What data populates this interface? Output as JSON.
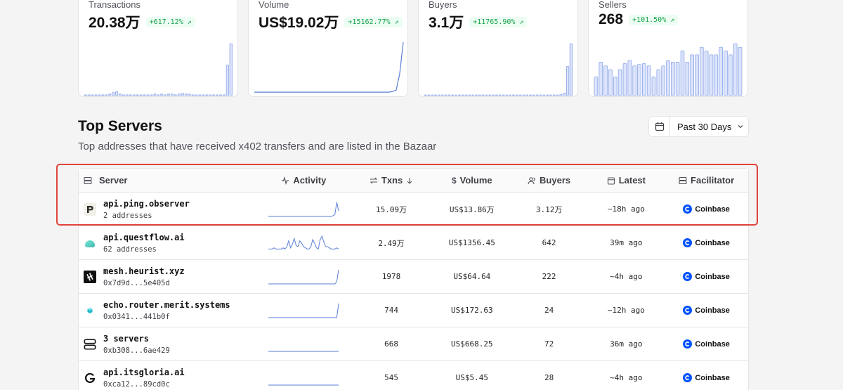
{
  "stats": [
    {
      "label": "Transactions",
      "value": "20.38万",
      "change": "+617.12% ↗",
      "chart": "bar",
      "series": [
        1,
        1,
        1,
        1,
        1,
        1,
        1,
        2,
        4,
        5,
        2,
        1,
        1,
        1,
        1,
        1,
        1,
        1,
        1,
        1,
        2,
        1,
        2,
        1,
        2,
        2,
        1,
        2,
        3,
        2,
        2,
        1,
        1,
        1,
        1,
        1,
        1,
        1,
        1,
        1,
        1,
        40,
        68
      ]
    },
    {
      "label": "Volume",
      "value": "US$19.02万",
      "change": "+15162.77% ↗",
      "chart": "line",
      "series": [
        1,
        1,
        1,
        1,
        1,
        1,
        1,
        1,
        1,
        1,
        1,
        1,
        1,
        1,
        1,
        1,
        1,
        1,
        1,
        1,
        1,
        1,
        1,
        1,
        1,
        1,
        1,
        1,
        1,
        1,
        1,
        1,
        1,
        1,
        1,
        1,
        1,
        1,
        1,
        2,
        4,
        30,
        80
      ]
    },
    {
      "label": "Buyers",
      "value": "3.1万",
      "change": "+11765.90% ↗",
      "chart": "bar",
      "series": [
        0,
        0,
        0,
        0,
        0,
        0,
        0,
        0,
        0,
        0,
        0,
        0,
        0,
        0,
        0,
        0,
        0,
        0,
        0,
        0,
        0,
        0,
        0,
        0,
        0,
        0,
        0,
        0,
        0,
        0,
        0,
        0,
        0,
        0,
        0,
        0,
        0,
        0,
        0,
        0,
        2,
        4,
        45,
        80
      ]
    },
    {
      "label": "Sellers",
      "value": "268",
      "change": "+101.50% ↗",
      "chart": "bar",
      "series": [
        25,
        45,
        40,
        35,
        25,
        35,
        43,
        47,
        40,
        42,
        43,
        40,
        25,
        35,
        40,
        47,
        45,
        45,
        60,
        45,
        55,
        55,
        65,
        60,
        55,
        55,
        65,
        60,
        55,
        70,
        65
      ]
    }
  ],
  "section": {
    "title": "Top Servers",
    "subtitle": "Top addresses that have received x402 transfers and are listed in the Bazaar",
    "date_range": "Past 30 Days"
  },
  "table": {
    "headers": {
      "server": "Server",
      "activity": "Activity",
      "txns": "Txns",
      "volume": "Volume",
      "buyers": "Buyers",
      "latest": "Latest",
      "facilitator": "Facilitator"
    },
    "rows": [
      {
        "name": "api.ping.observer",
        "sub": "2 addresses",
        "logo": "ping-logo",
        "txns": "15.09万",
        "volume": "US$13.86万",
        "buyers": "3.12万",
        "latest": "~18h ago",
        "facilitator": "Coinbase",
        "activity": [
          0,
          0,
          0,
          0,
          0,
          0,
          0,
          0,
          0,
          0,
          0,
          0,
          0,
          0,
          0,
          0,
          0,
          0,
          0,
          0,
          0,
          0,
          0,
          0,
          0,
          0,
          0,
          0,
          0,
          0,
          0,
          0,
          0,
          0,
          0,
          1,
          3,
          20,
          8
        ]
      },
      {
        "name": "api.questflow.ai",
        "sub": "62 addresses",
        "logo": "questflow-logo",
        "txns": "2.49万",
        "volume": "US$1356.45",
        "buyers": "642",
        "latest": "39m ago",
        "facilitator": "Coinbase",
        "activity": [
          1,
          1,
          1,
          2,
          1,
          1,
          1,
          1,
          2,
          1,
          3,
          8,
          2,
          5,
          10,
          4,
          3,
          8,
          6,
          3,
          2,
          1,
          1,
          3,
          9,
          6,
          2,
          1,
          9,
          12,
          7,
          3,
          3,
          2,
          1,
          1,
          1,
          2,
          1
        ]
      },
      {
        "name": "mesh.heurist.xyz",
        "sub": "0x7d9d...5e405d",
        "logo": "heurist-logo",
        "txns": "1978",
        "volume": "US$64.64",
        "buyers": "222",
        "latest": "~4h ago",
        "facilitator": "Coinbase",
        "activity": [
          0,
          0,
          0,
          0,
          0,
          0,
          0,
          0,
          0,
          0,
          0,
          0,
          0,
          0,
          0,
          0,
          0,
          0,
          0,
          0,
          0,
          0,
          0,
          0,
          0,
          0,
          0,
          0,
          0,
          0,
          0,
          0,
          0,
          0,
          0,
          0,
          0,
          1,
          6
        ]
      },
      {
        "name": "echo.router.merit.systems",
        "sub": "0x0341...441b0f",
        "logo": "merit-logo",
        "txns": "744",
        "volume": "US$172.63",
        "buyers": "24",
        "latest": "~12h ago",
        "facilitator": "Coinbase",
        "activity": [
          0,
          0,
          0,
          0,
          0,
          0,
          0,
          0,
          0,
          0,
          0,
          0,
          0,
          0,
          0,
          0,
          0,
          0,
          0,
          0,
          0,
          0,
          0,
          0,
          0,
          0,
          0,
          0,
          0,
          0,
          0,
          0,
          0,
          0,
          0,
          0,
          0,
          0,
          1
        ]
      },
      {
        "name": "3 servers",
        "sub": "0xb308...6ae429",
        "logo": "server-stack-logo",
        "txns": "668",
        "volume": "US$668.25",
        "buyers": "72",
        "latest": "36m ago",
        "facilitator": "Coinbase",
        "activity": [
          0,
          0,
          0,
          0,
          0,
          0,
          0,
          0,
          0,
          0,
          0,
          0,
          0,
          0,
          0,
          0,
          0,
          0,
          0,
          0,
          0,
          0,
          0,
          0,
          0,
          0,
          0,
          0,
          0,
          0,
          0,
          0,
          0,
          0,
          0,
          0,
          0,
          0,
          0
        ]
      },
      {
        "name": "api.itsgloria.ai",
        "sub": "0xca12...89cd0c",
        "logo": "gloria-logo",
        "txns": "545",
        "volume": "US$5.45",
        "buyers": "28",
        "latest": "~4h ago",
        "facilitator": "Coinbase",
        "activity": [
          0,
          0,
          0,
          0,
          0,
          0,
          0,
          0,
          0,
          0,
          0,
          0,
          0,
          0,
          0,
          0,
          0,
          0,
          0,
          0,
          0,
          0,
          0,
          0,
          0,
          0,
          0,
          0,
          0,
          0,
          0,
          0,
          0,
          0,
          0,
          0,
          0,
          0,
          0
        ]
      }
    ]
  },
  "colors": {
    "accent": "#5b7fd6",
    "bar_fill": "#dbe4fb",
    "bar_stroke": "#8ea6e8",
    "positive": "#16a34a",
    "highlight": "#e0443b",
    "coinbase": "#0052ff"
  }
}
